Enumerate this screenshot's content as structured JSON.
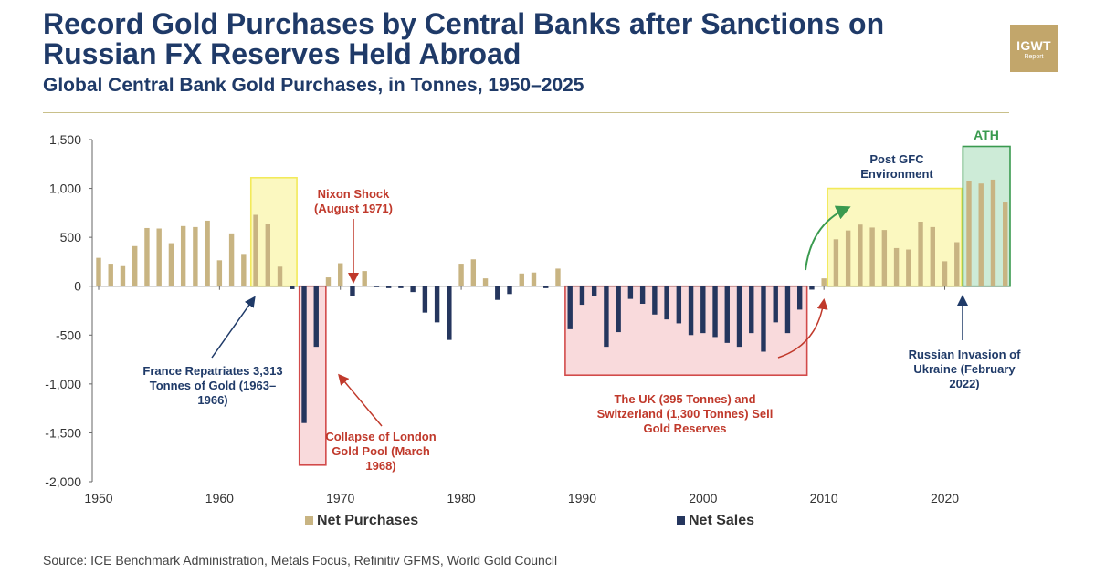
{
  "header": {
    "title": "Record Gold Purchases by Central Banks after Sanctions on Russian FX Reserves Held Abroad",
    "subtitle": "Global Central Bank Gold Purchases, in Tonnes, 1950–2025",
    "logo_main": "IGWT",
    "logo_sub": "Report"
  },
  "annotations": {
    "france": "France Repatriates 3,313 Tonnes of Gold (1963–1966)",
    "london": "Collapse of London Gold Pool (March 1968)",
    "nixon": "Nixon Shock (August 1971)",
    "uk_swiss": "The UK (395 Tonnes) and Switzerland (1,300 Tonnes) Sell Gold Reserves",
    "post_gfc": "Post GFC Environment",
    "ath": "ATH",
    "russia": "Russian Invasion of Ukraine (February 2022)"
  },
  "legend": {
    "purchases": "Net Purchases",
    "sales": "Net Sales"
  },
  "source": "Source: ICE Benchmark Administration, Metals Focus, Refinitiv GFMS, World Gold Council",
  "colors": {
    "purchases": "#c8b482",
    "sales": "#25365e",
    "title": "#1f3a68",
    "red_accent": "#c0392b",
    "yellow_box": "#f7f19a",
    "pink_box": "#f5c9cc",
    "green_box": "#b9e2c6",
    "green_accent": "#3a9a4f"
  },
  "chart_data": {
    "type": "bar",
    "title": "Global Central Bank Gold Purchases, in Tonnes, 1950–2025",
    "ylabel": "",
    "xlabel": "",
    "ylim": [
      -2000,
      1500
    ],
    "xlim": [
      1950,
      2025
    ],
    "yticks": [
      "1,500",
      "1,000",
      "500",
      "0",
      "-500",
      "-1,000",
      "-1,500",
      "-2,000"
    ],
    "xticks": [
      "1950",
      "1960",
      "1970",
      "1980",
      "1990",
      "2000",
      "2010",
      "2020"
    ],
    "series": [
      {
        "name": "Net Purchases",
        "x": [],
        "values": []
      },
      {
        "name": "Net Sales",
        "x": [],
        "values": []
      }
    ],
    "x": [
      1950,
      1951,
      1952,
      1953,
      1954,
      1955,
      1956,
      1957,
      1958,
      1959,
      1960,
      1961,
      1962,
      1963,
      1964,
      1965,
      1966,
      1967,
      1968,
      1969,
      1970,
      1971,
      1972,
      1973,
      1974,
      1975,
      1976,
      1977,
      1978,
      1979,
      1980,
      1981,
      1982,
      1983,
      1984,
      1985,
      1986,
      1987,
      1988,
      1989,
      1990,
      1991,
      1992,
      1993,
      1994,
      1995,
      1996,
      1997,
      1998,
      1999,
      2000,
      2001,
      2002,
      2003,
      2004,
      2005,
      2006,
      2007,
      2008,
      2009,
      2010,
      2011,
      2012,
      2013,
      2014,
      2015,
      2016,
      2017,
      2018,
      2019,
      2020,
      2021,
      2022,
      2023,
      2024,
      2025
    ],
    "values": [
      290,
      230,
      205,
      410,
      595,
      590,
      440,
      615,
      605,
      670,
      265,
      540,
      330,
      730,
      635,
      200,
      -30,
      -1400,
      -620,
      90,
      235,
      -100,
      155,
      -10,
      -20,
      -20,
      -60,
      -270,
      -370,
      -550,
      230,
      275,
      80,
      -140,
      -80,
      130,
      140,
      -20,
      180,
      -440,
      -190,
      -100,
      -620,
      -470,
      -130,
      -180,
      -290,
      -340,
      -380,
      -500,
      -480,
      -520,
      -580,
      -620,
      -480,
      -670,
      -370,
      -480,
      -240,
      -35,
      80,
      480,
      570,
      630,
      600,
      575,
      390,
      375,
      660,
      605,
      255,
      450,
      1080,
      1050,
      1090,
      865
    ],
    "regions": [
      {
        "label": "France Repatriates 3,313 Tonnes of Gold (1963–1966)",
        "from": 1962.6,
        "to": 1966.4,
        "ylim": [
          0,
          1110
        ],
        "color": "yellow"
      },
      {
        "label": "Collapse of London Gold Pool (March 1968)",
        "from": 1966.6,
        "to": 1968.8,
        "ylim": [
          -1830,
          0
        ],
        "color": "pink"
      },
      {
        "label": "The UK (395 Tonnes) and Switzerland (1,300 Tonnes) Sell Gold Reserves",
        "from": 1988.6,
        "to": 2008.6,
        "ylim": [
          -910,
          0
        ],
        "color": "pink"
      },
      {
        "label": "Post GFC Environment",
        "from": 2010.3,
        "to": 2021.4,
        "ylim": [
          0,
          1000
        ],
        "color": "yellow"
      },
      {
        "label": "ATH",
        "from": 2021.5,
        "to": 2025.4,
        "ylim": [
          0,
          1430
        ],
        "color": "green"
      }
    ],
    "legend_position": "bottom",
    "grid": false
  }
}
